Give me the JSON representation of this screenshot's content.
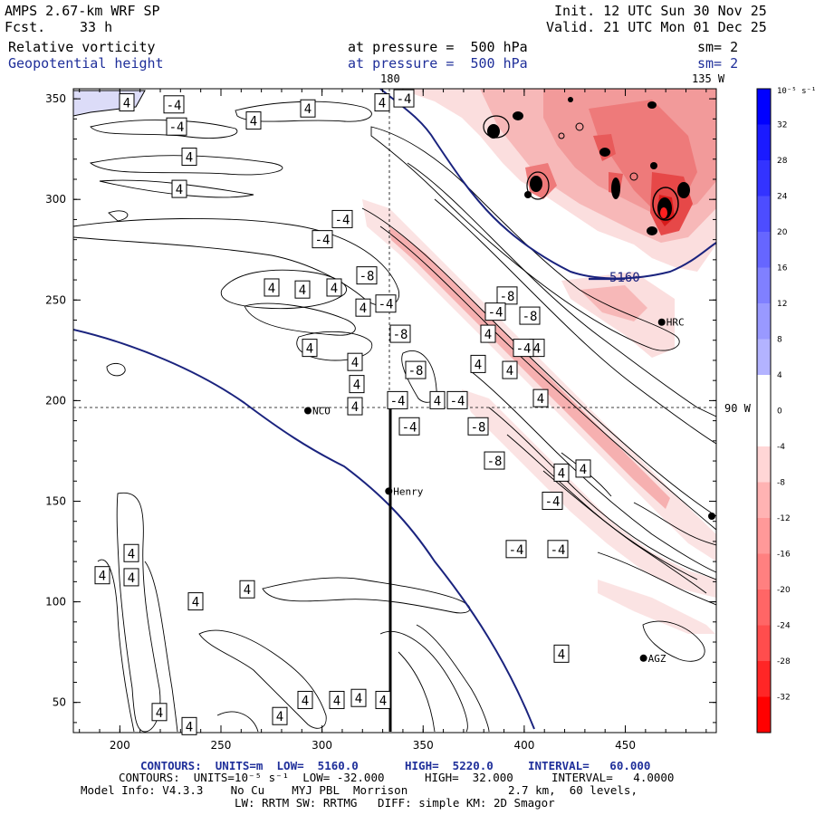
{
  "header": {
    "model": "AMPS 2.67-km WRF SP",
    "fcst_label": "Fcst.",
    "fcst_value": "33 h",
    "init": "Init. 12 UTC Sun 30 Nov 25",
    "valid": "Valid. 21 UTC Mon 01 Dec 25",
    "field1": "Relative vorticity",
    "field1_level": "at pressure =  500 hPa",
    "field1_sm": "sm= 2",
    "field2": "Geopotential height",
    "field2_level": "at pressure =  500 hPa",
    "field2_sm": "sm= 2"
  },
  "map": {
    "lon_labels": {
      "top_180": "180",
      "top_135w": "135 W",
      "right_90w": "90 W"
    },
    "stations": [
      {
        "name": "NCO",
        "x": 293,
        "y": 195
      },
      {
        "name": "Henry",
        "x": 333,
        "y": 155
      },
      {
        "name": "HRC",
        "x": 468,
        "y": 239
      },
      {
        "name": "AGZ",
        "x": 459,
        "y": 72
      }
    ],
    "height_contour_label": "5160"
  },
  "chart_data": {
    "type": "heatmap",
    "x_ticks": [
      200,
      250,
      300,
      350,
      400,
      450
    ],
    "y_ticks": [
      50,
      100,
      150,
      200,
      250,
      300,
      350
    ],
    "xlim": [
      177,
      495
    ],
    "ylim": [
      35,
      355
    ],
    "vorticity_contour_labels": [
      {
        "v": "-4",
        "x": 192,
        "y": 347
      },
      {
        "v": "4",
        "x": 140,
        "y": 348
      },
      {
        "v": "-4",
        "x": 195,
        "y": 336
      },
      {
        "v": "4",
        "x": 209,
        "y": 321
      },
      {
        "v": "4",
        "x": 198,
        "y": 305
      },
      {
        "v": "4",
        "x": 280,
        "y": 339
      },
      {
        "v": "4",
        "x": 340,
        "y": 345
      },
      {
        "v": "4",
        "x": 422,
        "y": 348
      },
      {
        "v": "-4",
        "x": 446,
        "y": 350
      },
      {
        "v": "-4",
        "x": 378,
        "y": 290
      },
      {
        "v": "-4",
        "x": 356,
        "y": 280
      },
      {
        "v": "-8",
        "x": 405,
        "y": 262
      },
      {
        "v": "4",
        "x": 369,
        "y": 256
      },
      {
        "v": "4",
        "x": 334,
        "y": 255
      },
      {
        "v": "4",
        "x": 300,
        "y": 256
      },
      {
        "v": "4",
        "x": 401,
        "y": 246
      },
      {
        "v": "-4",
        "x": 426,
        "y": 248
      },
      {
        "v": "-8",
        "x": 442,
        "y": 233
      },
      {
        "v": "-8",
        "x": 459,
        "y": 215
      },
      {
        "v": "4",
        "x": 392,
        "y": 219
      },
      {
        "v": "4",
        "x": 342,
        "y": 226
      },
      {
        "v": "4",
        "x": 392,
        "y": 197
      },
      {
        "v": "4",
        "x": 394,
        "y": 208
      },
      {
        "v": "-4",
        "x": 439,
        "y": 200
      },
      {
        "v": "-4",
        "x": 452,
        "y": 187
      },
      {
        "v": "4",
        "x": 483,
        "y": 200
      },
      {
        "v": "-4",
        "x": 505,
        "y": 200
      },
      {
        "v": "-8",
        "x": 528,
        "y": 187
      },
      {
        "v": "-8",
        "x": 546,
        "y": 170
      },
      {
        "v": "4",
        "x": 528,
        "y": 218
      },
      {
        "v": "4",
        "x": 539,
        "y": 233
      },
      {
        "v": "4",
        "x": 563,
        "y": 215
      },
      {
        "v": "4",
        "x": 593,
        "y": 226
      },
      {
        "v": "4",
        "x": 597,
        "y": 201
      },
      {
        "v": "-4",
        "x": 578,
        "y": 226
      },
      {
        "v": "-8",
        "x": 560,
        "y": 252
      },
      {
        "v": "-8",
        "x": 585,
        "y": 242
      },
      {
        "v": "-4",
        "x": 547,
        "y": 244
      },
      {
        "v": "4",
        "x": 620,
        "y": 164
      },
      {
        "v": "4",
        "x": 644,
        "y": 166
      },
      {
        "v": "-4",
        "x": 610,
        "y": 150
      },
      {
        "v": "-4",
        "x": 570,
        "y": 126
      },
      {
        "v": "-4",
        "x": 616,
        "y": 126
      },
      {
        "v": "4",
        "x": 145,
        "y": 124
      },
      {
        "v": "4",
        "x": 145,
        "y": 112
      },
      {
        "v": "4",
        "x": 113,
        "y": 113
      },
      {
        "v": "4",
        "x": 273,
        "y": 106
      },
      {
        "v": "4",
        "x": 216,
        "y": 100
      },
      {
        "v": "4",
        "x": 620,
        "y": 74
      },
      {
        "v": "4",
        "x": 176,
        "y": 45
      },
      {
        "v": "4",
        "x": 209,
        "y": 38
      },
      {
        "v": "4",
        "x": 309,
        "y": 43
      },
      {
        "v": "4",
        "x": 337,
        "y": 51
      },
      {
        "v": "4",
        "x": 372,
        "y": 51
      },
      {
        "v": "4",
        "x": 396,
        "y": 52
      },
      {
        "v": "4",
        "x": 423,
        "y": 51
      }
    ],
    "colorbar": {
      "unit_label": "10⁻⁵ s⁻¹",
      "labels": [
        "32",
        "28",
        "24",
        "20",
        "16",
        "12",
        "8",
        "4",
        "0",
        "-4",
        "-8",
        "-12",
        "-16",
        "-20",
        "-24",
        "-28",
        "-32"
      ]
    }
  },
  "footer": {
    "line1a": "CONTOURS:  UNITS=m  LOW=  5160.0",
    "line1b": "HIGH=  5220.0",
    "line1c": "INTERVAL=   60.000",
    "line2a": "CONTOURS:  UNITS=10⁻⁵ s⁻¹  LOW= -32.000",
    "line2b": "HIGH=  32.000",
    "line2c": "INTERVAL=   4.0000",
    "line3": "Model Info: V4.3.3    No Cu    MYJ PBL  Morrison",
    "line3b": "2.7 km,  60 levels,",
    "line4": "LW: RRTM SW: RRTMG   DIFF: simple KM: 2D Smagor"
  },
  "colors": {
    "height_contour": "#1a237e",
    "vort_neg_light": "#fbe3e3",
    "vort_neg_mid": "#f4a6a6",
    "vort_neg_strong": "#ee5555",
    "vort_pos_light": "#d8d8f8"
  }
}
